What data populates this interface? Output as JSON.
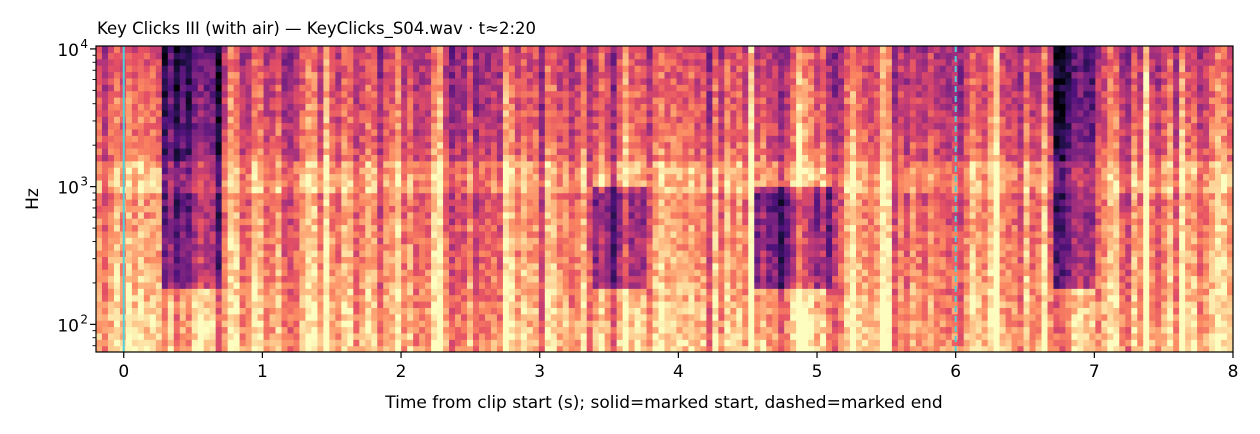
{
  "chart_data": {
    "type": "heatmap",
    "title": "Key Clicks III (with air)  —  KeyClicks_S04.wav · t≈2:20",
    "xlabel": "Time from clip start (s); solid=marked start, dashed=marked end",
    "ylabel": "Hz",
    "xlim": [
      -0.2,
      8.0
    ],
    "ylim": [
      63,
      10500
    ],
    "yscale": "log",
    "grid": false,
    "colormap": "magma",
    "x_ticks": [
      {
        "value": 0,
        "label": "0"
      },
      {
        "value": 1,
        "label": "1"
      },
      {
        "value": 2,
        "label": "2"
      },
      {
        "value": 3,
        "label": "3"
      },
      {
        "value": 4,
        "label": "4"
      },
      {
        "value": 5,
        "label": "5"
      },
      {
        "value": 6,
        "label": "6"
      },
      {
        "value": 7,
        "label": "7"
      },
      {
        "value": 8,
        "label": "8"
      }
    ],
    "y_ticks": [
      {
        "value": 100,
        "base": "10",
        "exp": "2"
      },
      {
        "value": 1000,
        "base": "10",
        "exp": "3"
      },
      {
        "value": 10000,
        "base": "10",
        "exp": "4"
      }
    ],
    "markers": [
      {
        "kind": "start",
        "x": 0.0,
        "style": "solid",
        "color": "#4fd1d9"
      },
      {
        "kind": "end",
        "x": 6.0,
        "style": "dashed",
        "color": "#4fd1d9"
      }
    ],
    "key_clicks_s": [
      0.07,
      0.52,
      0.8,
      1.32,
      1.48,
      1.95,
      2.25,
      2.78,
      3.08,
      3.63,
      3.96,
      4.35,
      4.53,
      4.88,
      5.25,
      5.5,
      6.3,
      6.62,
      6.85,
      7.1,
      7.38,
      7.65,
      7.9
    ],
    "quiet_gaps": [
      {
        "t0": 0.28,
        "t1": 0.7,
        "f_below_hz": 20000
      },
      {
        "t0": 3.4,
        "t1": 3.75,
        "f_below_hz": 1000
      },
      {
        "t0": 4.55,
        "t1": 5.1,
        "f_below_hz": 1000
      },
      {
        "t0": 6.7,
        "t1": 7.0,
        "f_below_hz": 20000
      }
    ]
  }
}
